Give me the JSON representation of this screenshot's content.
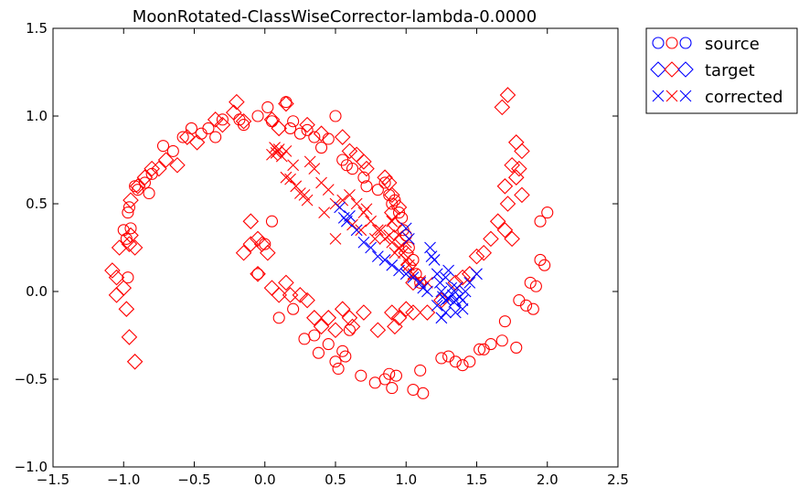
{
  "chart_data": {
    "type": "scatter",
    "title": "MoonRotated-ClassWiseCorrector-lambda-0.0000",
    "xlim": [
      -1.5,
      2.5
    ],
    "ylim": [
      -1.0,
      1.5
    ],
    "xticks": [
      "−1.5",
      "−1.0",
      "−0.5",
      "0.0",
      "0.5",
      "1.0",
      "1.5",
      "2.0",
      "2.5"
    ],
    "yticks": [
      "−1.0",
      "−0.5",
      "0.0",
      "0.5",
      "1.0",
      "1.5"
    ],
    "xtick_values": [
      -1.5,
      -1.0,
      -0.5,
      0.0,
      0.5,
      1.0,
      1.5,
      2.0,
      2.5
    ],
    "ytick_values": [
      -1.0,
      -0.5,
      0.0,
      0.5,
      1.0,
      1.5
    ],
    "grid": false,
    "legend": {
      "placement": "outside-top-right",
      "entries": [
        {
          "label": "source",
          "marker": "circle"
        },
        {
          "label": "target",
          "marker": "diamond"
        },
        {
          "label": "corrected",
          "marker": "x"
        }
      ]
    },
    "colors": {
      "class0": "#ff0000",
      "class1": "#0000ff"
    },
    "series": [
      {
        "name": "source",
        "marker": "circle",
        "class": 0,
        "points": [
          [
            -1.0,
            0.35
          ],
          [
            -0.98,
            0.3
          ],
          [
            -0.97,
            0.45
          ],
          [
            -0.96,
            0.48
          ],
          [
            -0.95,
            0.36
          ],
          [
            -0.92,
            0.6
          ],
          [
            -0.9,
            0.58
          ],
          [
            -0.85,
            0.62
          ],
          [
            -0.82,
            0.56
          ],
          [
            -0.8,
            0.67
          ],
          [
            -0.72,
            0.83
          ],
          [
            -0.65,
            0.8
          ],
          [
            -0.58,
            0.88
          ],
          [
            -0.52,
            0.93
          ],
          [
            -0.45,
            0.9
          ],
          [
            -0.4,
            0.93
          ],
          [
            -0.35,
            0.88
          ],
          [
            -0.3,
            0.98
          ],
          [
            -0.18,
            0.98
          ],
          [
            -0.15,
            0.95
          ],
          [
            -0.05,
            1.0
          ],
          [
            0.02,
            1.05
          ],
          [
            0.05,
            0.97
          ],
          [
            0.15,
            1.08
          ],
          [
            0.18,
            0.93
          ],
          [
            0.2,
            0.97
          ],
          [
            0.25,
            0.9
          ],
          [
            0.3,
            0.92
          ],
          [
            0.35,
            0.88
          ],
          [
            0.4,
            0.82
          ],
          [
            0.45,
            0.87
          ],
          [
            0.5,
            1.0
          ],
          [
            0.55,
            0.75
          ],
          [
            0.58,
            0.72
          ],
          [
            0.62,
            0.7
          ],
          [
            0.7,
            0.65
          ],
          [
            0.72,
            0.6
          ],
          [
            0.8,
            0.58
          ],
          [
            0.85,
            0.62
          ],
          [
            0.88,
            0.55
          ],
          [
            0.9,
            0.5
          ],
          [
            0.92,
            0.52
          ],
          [
            0.95,
            0.45
          ],
          [
            0.97,
            0.42
          ],
          [
            0.98,
            0.35
          ],
          [
            1.0,
            0.32
          ],
          [
            1.02,
            0.25
          ],
          [
            1.05,
            0.18
          ],
          [
            1.07,
            0.1
          ],
          [
            1.1,
            0.05
          ],
          [
            -0.97,
            0.08
          ],
          [
            0.05,
            0.4
          ],
          [
            0.0,
            0.27
          ],
          [
            -0.05,
            0.1
          ],
          [
            0.1,
            -0.15
          ],
          [
            0.2,
            -0.1
          ],
          [
            0.28,
            -0.27
          ],
          [
            0.35,
            -0.25
          ],
          [
            0.38,
            -0.35
          ],
          [
            0.45,
            -0.3
          ],
          [
            0.5,
            -0.4
          ],
          [
            0.52,
            -0.44
          ],
          [
            0.55,
            -0.34
          ],
          [
            0.57,
            -0.37
          ],
          [
            0.6,
            -0.22
          ],
          [
            0.68,
            -0.48
          ],
          [
            0.78,
            -0.52
          ],
          [
            0.85,
            -0.5
          ],
          [
            0.88,
            -0.47
          ],
          [
            0.9,
            -0.55
          ],
          [
            0.93,
            -0.48
          ],
          [
            1.05,
            -0.56
          ],
          [
            1.1,
            -0.45
          ],
          [
            1.12,
            -0.58
          ],
          [
            1.25,
            -0.38
          ],
          [
            1.3,
            -0.37
          ],
          [
            1.35,
            -0.4
          ],
          [
            1.4,
            -0.42
          ],
          [
            1.45,
            -0.4
          ],
          [
            1.52,
            -0.33
          ],
          [
            1.55,
            -0.33
          ],
          [
            1.6,
            -0.3
          ],
          [
            1.68,
            -0.28
          ],
          [
            1.7,
            -0.17
          ],
          [
            1.78,
            -0.32
          ],
          [
            1.8,
            -0.05
          ],
          [
            1.85,
            -0.08
          ],
          [
            1.88,
            0.05
          ],
          [
            1.92,
            0.03
          ],
          [
            1.95,
            0.18
          ],
          [
            1.98,
            0.15
          ],
          [
            1.9,
            -0.1
          ],
          [
            1.95,
            0.4
          ],
          [
            2.0,
            0.45
          ]
        ]
      },
      {
        "name": "target",
        "marker": "diamond",
        "class": 0,
        "points": [
          [
            -1.08,
            0.12
          ],
          [
            -1.05,
            0.08
          ],
          [
            -1.05,
            -0.02
          ],
          [
            -1.03,
            0.25
          ],
          [
            -1.0,
            0.02
          ],
          [
            -0.98,
            -0.1
          ],
          [
            -0.96,
            0.27
          ],
          [
            -0.95,
            0.32
          ],
          [
            -0.92,
            0.25
          ],
          [
            -0.96,
            -0.26
          ],
          [
            -0.92,
            -0.4
          ],
          [
            -0.95,
            0.52
          ],
          [
            -0.9,
            0.6
          ],
          [
            -0.85,
            0.65
          ],
          [
            -0.8,
            0.7
          ],
          [
            -0.75,
            0.7
          ],
          [
            -0.7,
            0.75
          ],
          [
            -0.62,
            0.72
          ],
          [
            -0.55,
            0.88
          ],
          [
            -0.48,
            0.85
          ],
          [
            -0.35,
            0.98
          ],
          [
            -0.3,
            0.95
          ],
          [
            -0.22,
            1.02
          ],
          [
            -0.2,
            1.08
          ],
          [
            -0.15,
            0.97
          ],
          [
            0.05,
            0.98
          ],
          [
            0.1,
            0.93
          ],
          [
            0.15,
            1.07
          ],
          [
            0.3,
            0.95
          ],
          [
            0.4,
            0.9
          ],
          [
            0.55,
            0.88
          ],
          [
            0.6,
            0.8
          ],
          [
            0.65,
            0.78
          ],
          [
            0.7,
            0.74
          ],
          [
            0.72,
            0.7
          ],
          [
            0.85,
            0.65
          ],
          [
            0.88,
            0.62
          ],
          [
            0.9,
            0.55
          ],
          [
            0.9,
            0.45
          ],
          [
            0.92,
            0.38
          ],
          [
            0.95,
            0.48
          ],
          [
            0.97,
            0.3
          ],
          [
            1.0,
            0.22
          ],
          [
            1.02,
            0.15
          ],
          [
            1.05,
            0.05
          ],
          [
            -0.1,
            0.27
          ],
          [
            -0.15,
            0.22
          ],
          [
            -0.1,
            0.4
          ],
          [
            -0.05,
            0.3
          ],
          [
            -0.02,
            0.27
          ],
          [
            0.02,
            0.22
          ],
          [
            -0.05,
            0.1
          ],
          [
            0.05,
            0.02
          ],
          [
            0.1,
            -0.02
          ],
          [
            0.15,
            0.05
          ],
          [
            0.18,
            -0.02
          ],
          [
            0.25,
            -0.02
          ],
          [
            0.3,
            -0.05
          ],
          [
            0.35,
            -0.15
          ],
          [
            0.4,
            -0.2
          ],
          [
            0.45,
            -0.15
          ],
          [
            0.5,
            -0.22
          ],
          [
            0.55,
            -0.1
          ],
          [
            0.6,
            -0.15
          ],
          [
            0.62,
            -0.2
          ],
          [
            0.7,
            -0.12
          ],
          [
            0.8,
            -0.22
          ],
          [
            0.9,
            -0.12
          ],
          [
            0.92,
            -0.2
          ],
          [
            0.95,
            -0.15
          ],
          [
            1.0,
            -0.1
          ],
          [
            1.05,
            -0.12
          ],
          [
            1.15,
            -0.12
          ],
          [
            1.25,
            -0.05
          ],
          [
            1.35,
            0.05
          ],
          [
            1.4,
            0.08
          ],
          [
            1.45,
            0.1
          ],
          [
            1.5,
            0.2
          ],
          [
            1.55,
            0.22
          ],
          [
            1.6,
            0.3
          ],
          [
            1.65,
            0.4
          ],
          [
            1.7,
            0.35
          ],
          [
            1.72,
            0.5
          ],
          [
            1.75,
            0.3
          ],
          [
            1.78,
            0.65
          ],
          [
            1.8,
            0.7
          ],
          [
            1.82,
            0.55
          ],
          [
            1.7,
            0.6
          ],
          [
            1.75,
            0.72
          ],
          [
            1.78,
            0.85
          ],
          [
            1.82,
            0.8
          ],
          [
            1.68,
            1.05
          ],
          [
            1.72,
            1.12
          ]
        ]
      },
      {
        "name": "corrected",
        "marker": "x",
        "class": 0,
        "points": [
          [
            0.05,
            0.78
          ],
          [
            0.07,
            0.82
          ],
          [
            0.08,
            0.79
          ],
          [
            0.09,
            0.8
          ],
          [
            0.1,
            0.81
          ],
          [
            0.12,
            0.77
          ],
          [
            0.15,
            0.8
          ],
          [
            0.15,
            0.65
          ],
          [
            0.18,
            0.64
          ],
          [
            0.2,
            0.72
          ],
          [
            0.22,
            0.6
          ],
          [
            0.25,
            0.56
          ],
          [
            0.28,
            0.55
          ],
          [
            0.3,
            0.52
          ],
          [
            0.32,
            0.74
          ],
          [
            0.35,
            0.7
          ],
          [
            0.4,
            0.62
          ],
          [
            0.42,
            0.45
          ],
          [
            0.45,
            0.58
          ],
          [
            0.5,
            0.3
          ],
          [
            0.55,
            0.52
          ],
          [
            0.6,
            0.55
          ],
          [
            0.65,
            0.5
          ],
          [
            0.7,
            0.45
          ],
          [
            0.72,
            0.47
          ],
          [
            0.75,
            0.4
          ],
          [
            0.8,
            0.35
          ],
          [
            0.82,
            0.35
          ],
          [
            0.85,
            0.3
          ],
          [
            0.88,
            0.32
          ],
          [
            0.9,
            0.28
          ],
          [
            0.92,
            0.22
          ],
          [
            0.95,
            0.25
          ],
          [
            0.98,
            0.22
          ],
          [
            1.0,
            0.18
          ],
          [
            1.02,
            0.15
          ],
          [
            1.05,
            0.1
          ],
          [
            1.1,
            0.06
          ],
          [
            0.5,
            0.5
          ],
          [
            0.62,
            0.38
          ],
          [
            0.68,
            0.35
          ],
          [
            0.78,
            0.3
          ],
          [
            0.9,
            0.4
          ],
          [
            0.95,
            0.32
          ],
          [
            1.0,
            0.28
          ],
          [
            1.15,
            0.05
          ]
        ]
      },
      {
        "name": "corrected",
        "marker": "x",
        "class": 1,
        "points": [
          [
            0.53,
            0.48
          ],
          [
            0.56,
            0.42
          ],
          [
            0.58,
            0.4
          ],
          [
            0.6,
            0.43
          ],
          [
            0.65,
            0.35
          ],
          [
            0.7,
            0.28
          ],
          [
            0.75,
            0.25
          ],
          [
            0.8,
            0.2
          ],
          [
            0.85,
            0.18
          ],
          [
            0.9,
            0.15
          ],
          [
            0.95,
            0.12
          ],
          [
            1.0,
            0.1
          ],
          [
            1.0,
            0.36
          ],
          [
            1.02,
            0.3
          ],
          [
            1.05,
            0.08
          ],
          [
            1.1,
            0.05
          ],
          [
            1.12,
            0.02
          ],
          [
            1.15,
            0.0
          ],
          [
            1.17,
            0.25
          ],
          [
            1.18,
            0.2
          ],
          [
            1.2,
            0.18
          ],
          [
            1.22,
            0.1
          ],
          [
            1.24,
            0.05
          ],
          [
            1.25,
            0.0
          ],
          [
            1.26,
            -0.03
          ],
          [
            1.28,
            -0.05
          ],
          [
            1.28,
            0.08
          ],
          [
            1.3,
            -0.04
          ],
          [
            1.3,
            0.12
          ],
          [
            1.32,
            0.02
          ],
          [
            1.33,
            -0.02
          ],
          [
            1.34,
            -0.06
          ],
          [
            1.35,
            -0.05
          ],
          [
            1.36,
            0.02
          ],
          [
            1.38,
            -0.03
          ],
          [
            1.4,
            -0.05
          ],
          [
            1.42,
            0.0
          ],
          [
            1.45,
            0.05
          ],
          [
            1.22,
            -0.08
          ],
          [
            1.28,
            -0.12
          ],
          [
            1.25,
            -0.15
          ],
          [
            1.4,
            -0.1
          ],
          [
            1.35,
            -0.12
          ],
          [
            1.5,
            0.1
          ]
        ]
      }
    ]
  }
}
